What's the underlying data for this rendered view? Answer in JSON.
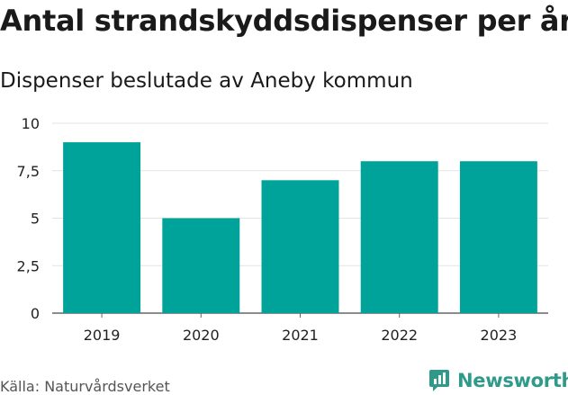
{
  "header": {
    "title": "Antal strandskyddsdispenser per år",
    "subtitle": "Dispenser beslutade av Aneby kommun"
  },
  "footer": {
    "source": "Källa: Naturvårdsverket",
    "brand": "Newsworthy",
    "brand_icon": "newsworthy-logo-icon"
  },
  "colors": {
    "bar": "#00a39a",
    "grid": "#e3e3e3",
    "brand": "#2f9a8a"
  },
  "chart_data": {
    "type": "bar",
    "title": "Antal strandskyddsdispenser per år",
    "subtitle": "Dispenser beslutade av Aneby kommun",
    "xlabel": "",
    "ylabel": "",
    "categories": [
      "2019",
      "2020",
      "2021",
      "2022",
      "2023"
    ],
    "values": [
      9,
      5,
      7,
      8,
      8
    ],
    "ylim": [
      0,
      10
    ],
    "yticks": [
      0,
      2.5,
      5,
      7.5,
      10
    ],
    "ytick_labels": [
      "0",
      "2,5",
      "5",
      "7,5",
      "10"
    ],
    "grid": true,
    "legend": "none"
  }
}
